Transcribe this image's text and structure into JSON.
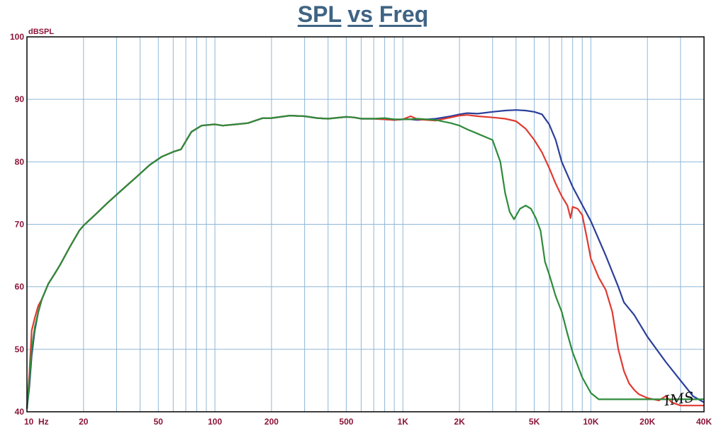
{
  "title": {
    "word1": "SPL",
    "word2": "vs",
    "word3": "Freq"
  },
  "signature": "IMS",
  "colors": {
    "background": "#ffffff",
    "axis_text": "#8b1538",
    "grid": "#8fb8d8",
    "border": "#000000",
    "title": "#3f6484"
  },
  "chart_data": {
    "type": "line",
    "title": "SPL vs Freq",
    "xlabel": "",
    "ylabel": "dBSPL",
    "x_scale": "log",
    "xlim": [
      10,
      40000
    ],
    "ylim": [
      40,
      100
    ],
    "grid": true,
    "x_ticks": [
      {
        "value": 10,
        "label": "10  Hz"
      },
      {
        "value": 20,
        "label": "20"
      },
      {
        "value": 50,
        "label": "50"
      },
      {
        "value": 100,
        "label": "100"
      },
      {
        "value": 200,
        "label": "200"
      },
      {
        "value": 500,
        "label": "500"
      },
      {
        "value": 1000,
        "label": "1K"
      },
      {
        "value": 2000,
        "label": "2K"
      },
      {
        "value": 5000,
        "label": "5K"
      },
      {
        "value": 10000,
        "label": "10K"
      },
      {
        "value": 20000,
        "label": "20K"
      },
      {
        "value": 40000,
        "label": "40K"
      }
    ],
    "y_ticks": [
      100,
      90,
      80,
      70,
      60,
      50,
      40
    ],
    "series": [
      {
        "color": "#2b3f9a",
        "x": [
          10,
          10.3,
          10.6,
          11,
          11.5,
          12,
          13,
          14,
          15,
          17,
          19,
          20,
          23,
          27,
          32,
          38,
          45,
          52,
          60,
          66,
          75,
          85,
          100,
          110,
          130,
          150,
          180,
          200,
          250,
          300,
          350,
          400,
          500,
          550,
          600,
          700,
          800,
          900,
          1000,
          1100,
          1200,
          1500,
          1800,
          2000,
          2200,
          2500,
          3000,
          3500,
          4000,
          4500,
          5000,
          5500,
          6000,
          6500,
          7000,
          8000,
          10000,
          12000,
          14000,
          15000,
          17000,
          20000,
          25000,
          30000,
          35000,
          40000
        ],
        "y": [
          40.5,
          44,
          49,
          53,
          56,
          58,
          60.5,
          62,
          63.5,
          66.5,
          69,
          69.8,
          71.5,
          73.5,
          75.5,
          77.5,
          79.5,
          80.8,
          81.6,
          82,
          84.8,
          85.8,
          86,
          85.8,
          86,
          86.2,
          87,
          87,
          87.4,
          87.3,
          87,
          86.9,
          87.2,
          87.1,
          86.9,
          86.9,
          86.8,
          86.7,
          86.8,
          86.8,
          86.7,
          86.9,
          87.3,
          87.6,
          87.8,
          87.7,
          88,
          88.2,
          88.3,
          88.2,
          88,
          87.6,
          86,
          83.5,
          80,
          76,
          70.5,
          65,
          60,
          57.5,
          55.5,
          52,
          48,
          45,
          42.5,
          41.5
        ]
      },
      {
        "color": "#e03a30",
        "x": [
          10,
          10.3,
          10.6,
          11,
          11.5,
          12,
          13,
          14,
          15,
          17,
          19,
          20,
          23,
          27,
          32,
          38,
          45,
          52,
          60,
          66,
          75,
          85,
          100,
          110,
          130,
          150,
          180,
          200,
          250,
          300,
          350,
          400,
          500,
          550,
          600,
          700,
          800,
          900,
          1000,
          1100,
          1200,
          1500,
          1800,
          2000,
          2200,
          2500,
          3000,
          3500,
          4000,
          4500,
          5000,
          5500,
          6000,
          6500,
          7000,
          7500,
          7800,
          8000,
          8500,
          9000,
          9500,
          10000,
          11000,
          12000,
          13000,
          14000,
          15000,
          16000,
          17000,
          18000,
          20000,
          23000,
          25000,
          27000,
          30000,
          35000,
          40000
        ],
        "y": [
          40.5,
          46,
          53,
          55,
          57,
          58,
          60.5,
          62,
          63.5,
          66.5,
          69,
          69.8,
          71.5,
          73.5,
          75.5,
          77.5,
          79.5,
          80.8,
          81.6,
          82,
          84.8,
          85.8,
          86,
          85.8,
          86,
          86.2,
          87,
          87,
          87.4,
          87.3,
          87,
          86.9,
          87.2,
          87.1,
          86.9,
          86.9,
          86.8,
          86.7,
          86.8,
          87.3,
          86.8,
          86.6,
          87.1,
          87.4,
          87.5,
          87.3,
          87.1,
          86.9,
          86.5,
          85.3,
          83.5,
          81.5,
          79,
          76.5,
          74.5,
          73,
          71,
          72.8,
          72.5,
          71.5,
          68,
          64.5,
          61.5,
          59.5,
          56,
          50,
          46.5,
          44.5,
          43.5,
          42.8,
          42.2,
          41.8,
          42.5,
          41.5,
          41,
          41,
          41
        ]
      },
      {
        "color": "#2e8b3a",
        "x": [
          10,
          10.3,
          10.6,
          11,
          11.5,
          12,
          13,
          14,
          15,
          17,
          19,
          20,
          23,
          27,
          32,
          38,
          45,
          52,
          60,
          66,
          75,
          85,
          100,
          110,
          130,
          150,
          180,
          200,
          250,
          300,
          350,
          400,
          500,
          550,
          600,
          700,
          800,
          900,
          1000,
          1100,
          1200,
          1500,
          1800,
          2000,
          2200,
          2500,
          3000,
          3300,
          3500,
          3700,
          3900,
          4200,
          4500,
          4800,
          5100,
          5400,
          5700,
          6000,
          6500,
          7000,
          7500,
          8000,
          9000,
          10000,
          11000,
          12000,
          15000,
          20000,
          25000,
          30000,
          35000,
          40000
        ],
        "y": [
          40.5,
          45,
          50,
          53.5,
          56,
          58,
          60.5,
          62,
          63.5,
          66.5,
          69,
          69.8,
          71.5,
          73.5,
          75.5,
          77.5,
          79.5,
          80.8,
          81.6,
          82,
          84.8,
          85.8,
          86,
          85.8,
          86,
          86.2,
          87,
          87,
          87.4,
          87.3,
          87,
          86.9,
          87.2,
          87.1,
          86.9,
          86.9,
          87,
          86.8,
          86.8,
          86.8,
          86.9,
          86.7,
          86.2,
          85.8,
          85.2,
          84.5,
          83.5,
          80,
          75,
          72,
          70.8,
          72.5,
          73,
          72.5,
          71,
          69,
          64,
          62,
          58.5,
          56,
          52.5,
          49.5,
          45.5,
          43,
          42,
          42,
          42,
          42,
          42,
          42,
          42,
          42
        ]
      }
    ]
  }
}
